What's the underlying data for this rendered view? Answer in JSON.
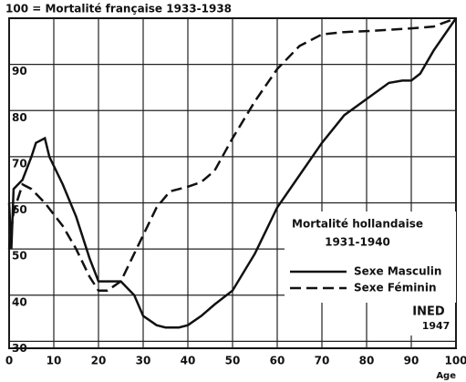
{
  "chart_data": {
    "type": "line",
    "title": "100 = Mortalité française 1933-1938",
    "x_label": "Age",
    "xlim": [
      0,
      100
    ],
    "xticks": [
      0,
      10,
      20,
      30,
      40,
      50,
      60,
      70,
      80,
      90,
      100
    ],
    "ylim": [
      28.5,
      100
    ],
    "yticks": [
      30,
      40,
      50,
      60,
      70,
      80,
      90
    ],
    "grid": true,
    "legend_title": [
      "Mortalité hollandaise",
      "1931-1940"
    ],
    "annotation": [
      "INED",
      "1947"
    ],
    "series": [
      {
        "name": "Sexe Masculin",
        "color": "#111111",
        "dash": false,
        "x": [
          0,
          0.5,
          1,
          3,
          5,
          6,
          8,
          9,
          12,
          15,
          18,
          20,
          22,
          25,
          28,
          30,
          33,
          35,
          38,
          40,
          43,
          46,
          50,
          55,
          60,
          65,
          70,
          75,
          80,
          85,
          88,
          90,
          92,
          95,
          100
        ],
        "values": [
          60,
          50,
          63,
          65,
          70,
          73,
          74,
          70,
          64,
          57,
          48,
          43,
          43,
          43,
          40,
          35.5,
          33.5,
          33,
          33,
          33.5,
          35.5,
          38,
          41,
          49,
          59,
          66,
          73,
          79,
          82.5,
          86,
          86.5,
          86.5,
          88,
          93,
          100
        ]
      },
      {
        "name": "Sexe Féminin",
        "color": "#111111",
        "dash": true,
        "x": [
          0,
          1,
          3,
          5,
          8,
          12,
          15,
          18,
          20,
          22,
          25,
          28,
          30,
          33,
          36,
          40,
          43,
          46,
          50,
          55,
          60,
          65,
          70,
          75,
          80,
          90,
          95,
          100
        ],
        "values": [
          50,
          58,
          64,
          63,
          60,
          55,
          50,
          44,
          41,
          41,
          43,
          49,
          53,
          59,
          62.5,
          63.5,
          64.5,
          67,
          74,
          82,
          89,
          94,
          96.5,
          97,
          97.2,
          97.8,
          98.2,
          100
        ]
      }
    ]
  }
}
